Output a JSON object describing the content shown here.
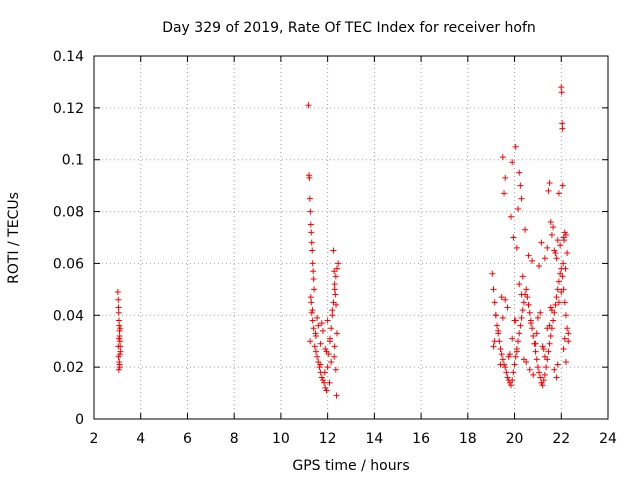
{
  "chart_data": {
    "type": "scatter",
    "title": "Day 329 of 2019, Rate Of TEC Index for receiver hofn",
    "xlabel": "GPS time / hours",
    "ylabel": "ROTI / TECUs",
    "xlim": [
      2,
      24
    ],
    "ylim": [
      0,
      0.14
    ],
    "xticks": [
      2,
      4,
      6,
      8,
      10,
      12,
      14,
      16,
      18,
      20,
      22,
      24
    ],
    "yticks": [
      0,
      0.02,
      0.04,
      0.06,
      0.08,
      0.1,
      0.12,
      0.14
    ],
    "ytick_labels": [
      "0",
      "0.02",
      "0.04",
      "0.06",
      "0.08",
      "0.1",
      "0.12",
      "0.14"
    ],
    "grid": true,
    "marker": "+",
    "marker_color": "#ff0000",
    "series": [
      {
        "name": "ROTI",
        "x": [
          3.02,
          3.04,
          3.05,
          3.06,
          3.07,
          3.08,
          3.09,
          3.1,
          3.11,
          3.12,
          3.13,
          3.05,
          3.08,
          3.1,
          3.06,
          3.09,
          3.11,
          3.04,
          3.07,
          3.12,
          11.18,
          11.2,
          11.22,
          11.24,
          11.26,
          11.28,
          11.3,
          11.32,
          11.34,
          11.36,
          11.38,
          11.4,
          11.42,
          11.3,
          11.32,
          11.36,
          11.4,
          11.25,
          11.45,
          11.5,
          11.55,
          11.6,
          11.65,
          11.7,
          11.75,
          11.8,
          11.85,
          11.9,
          11.95,
          12.0,
          12.05,
          12.1,
          12.15,
          12.2,
          12.25,
          12.3,
          12.35,
          12.4,
          12.45,
          11.5,
          11.6,
          11.7,
          11.8,
          11.9,
          12.0,
          12.1,
          12.2,
          12.3,
          12.4,
          12.25,
          12.28,
          12.3,
          12.33,
          12.36,
          12.38,
          11.35,
          11.55,
          11.75,
          11.95,
          12.15,
          12.35,
          11.28,
          11.48,
          11.68,
          11.88,
          12.08,
          12.28,
          19.05,
          19.1,
          19.15,
          19.2,
          19.25,
          19.3,
          19.35,
          19.4,
          19.45,
          19.5,
          19.55,
          19.6,
          19.65,
          19.7,
          19.75,
          19.8,
          19.85,
          19.9,
          19.95,
          20.0,
          20.05,
          20.1,
          20.15,
          20.2,
          20.25,
          20.3,
          20.35,
          20.4,
          20.45,
          20.5,
          20.55,
          20.6,
          20.65,
          20.7,
          20.75,
          20.8,
          20.85,
          20.9,
          20.95,
          21.0,
          21.05,
          21.1,
          21.15,
          21.2,
          21.25,
          21.3,
          21.35,
          21.4,
          21.45,
          21.5,
          21.55,
          21.6,
          21.65,
          21.7,
          21.75,
          21.8,
          21.85,
          21.9,
          21.95,
          22.0,
          22.05,
          22.1,
          22.15,
          22.2,
          22.25,
          22.3,
          19.1,
          19.3,
          19.5,
          19.7,
          19.9,
          20.1,
          20.3,
          20.5,
          20.7,
          20.9,
          21.1,
          21.3,
          21.5,
          21.7,
          21.9,
          22.1,
          22.3,
          19.2,
          19.4,
          19.6,
          19.8,
          20.0,
          20.2,
          20.4,
          20.6,
          20.8,
          21.0,
          21.2,
          21.4,
          21.6,
          21.8,
          22.0,
          22.2,
          19.15,
          19.45,
          19.75,
          20.05,
          20.35,
          20.65,
          20.95,
          21.25,
          21.55,
          21.85,
          22.15,
          19.5,
          19.6,
          19.55,
          19.9,
          20.05,
          20.2,
          20.25,
          20.3,
          20.15,
          21.5,
          21.45,
          21.55,
          21.6,
          21.9,
          22.0,
          22.02,
          22.04,
          22.05,
          22.06,
          22.1,
          22.12,
          22.15,
          21.7,
          21.8,
          21.95,
          22.08,
          22.2,
          22.25,
          19.85,
          19.95,
          20.1,
          20.45,
          20.6,
          20.75,
          21.05,
          21.15,
          21.3,
          21.4,
          21.65,
          21.75,
          21.85,
          22.18
        ],
        "y": [
          0.049,
          0.046,
          0.043,
          0.041,
          0.038,
          0.036,
          0.034,
          0.032,
          0.03,
          0.028,
          0.026,
          0.024,
          0.022,
          0.02,
          0.019,
          0.021,
          0.025,
          0.028,
          0.031,
          0.035,
          0.121,
          0.094,
          0.093,
          0.085,
          0.08,
          0.075,
          0.072,
          0.068,
          0.065,
          0.06,
          0.057,
          0.054,
          0.05,
          0.045,
          0.041,
          0.038,
          0.035,
          0.03,
          0.028,
          0.026,
          0.024,
          0.022,
          0.02,
          0.018,
          0.016,
          0.015,
          0.014,
          0.012,
          0.011,
          0.02,
          0.025,
          0.03,
          0.035,
          0.04,
          0.045,
          0.05,
          0.055,
          0.058,
          0.06,
          0.032,
          0.036,
          0.029,
          0.034,
          0.027,
          0.038,
          0.031,
          0.042,
          0.028,
          0.033,
          0.065,
          0.057,
          0.052,
          0.048,
          0.044,
          0.009,
          0.042,
          0.039,
          0.037,
          0.026,
          0.022,
          0.019,
          0.047,
          0.033,
          0.021,
          0.018,
          0.014,
          0.024,
          0.056,
          0.05,
          0.045,
          0.04,
          0.036,
          0.033,
          0.03,
          0.027,
          0.025,
          0.023,
          0.021,
          0.02,
          0.018,
          0.016,
          0.015,
          0.014,
          0.013,
          0.015,
          0.018,
          0.021,
          0.024,
          0.027,
          0.03,
          0.033,
          0.036,
          0.039,
          0.042,
          0.045,
          0.048,
          0.05,
          0.047,
          0.044,
          0.041,
          0.038,
          0.035,
          0.032,
          0.029,
          0.026,
          0.023,
          0.02,
          0.018,
          0.016,
          0.014,
          0.013,
          0.015,
          0.017,
          0.02,
          0.023,
          0.026,
          0.029,
          0.032,
          0.035,
          0.038,
          0.041,
          0.044,
          0.047,
          0.05,
          0.053,
          0.056,
          0.058,
          0.055,
          0.05,
          0.045,
          0.04,
          0.035,
          0.03,
          0.028,
          0.034,
          0.039,
          0.043,
          0.031,
          0.026,
          0.048,
          0.022,
          0.037,
          0.029,
          0.041,
          0.024,
          0.036,
          0.019,
          0.045,
          0.027,
          0.033,
          0.04,
          0.021,
          0.046,
          0.025,
          0.038,
          0.052,
          0.023,
          0.044,
          0.017,
          0.039,
          0.028,
          0.035,
          0.042,
          0.016,
          0.049,
          0.022,
          0.03,
          0.047,
          0.024,
          0.038,
          0.055,
          0.019,
          0.033,
          0.027,
          0.043,
          0.021,
          0.031,
          0.101,
          0.093,
          0.087,
          0.099,
          0.105,
          0.095,
          0.09,
          0.085,
          0.081,
          0.091,
          0.088,
          0.076,
          0.071,
          0.087,
          0.128,
          0.126,
          0.114,
          0.112,
          0.09,
          0.07,
          0.069,
          0.072,
          0.065,
          0.062,
          0.067,
          0.06,
          0.071,
          0.064,
          0.078,
          0.07,
          0.066,
          0.073,
          0.063,
          0.061,
          0.059,
          0.068,
          0.062,
          0.066,
          0.074,
          0.064,
          0.069,
          0.058
        ]
      }
    ]
  }
}
